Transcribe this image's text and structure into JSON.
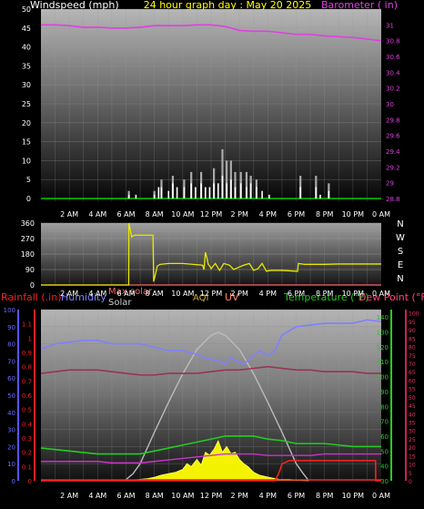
{
  "header": {
    "windspeed_label": "Windspeed (mph)",
    "title": "24 hour graph day : May 20 2025",
    "barometer_label": "Barometer ( in)"
  },
  "legend": {
    "rainfall": "Rainfall (.in)",
    "humidity": "Humidity",
    "max_solar": "Max solar",
    "solar": "Solar",
    "aqi": "AQI",
    "uv": "UV",
    "temperature": "Temperature (°F)",
    "dew_point": "Dew Point (°F)"
  },
  "colors": {
    "windspeed": "#ffffff",
    "wind_gust": "#aaaaaa",
    "barometer": "#e040e0",
    "wind_direction": "#e8e800",
    "humidity": "#8080ff",
    "max_solar": "#bbbbbb",
    "solar": "#ffff00",
    "temperature": "#22cc22",
    "dew_point": "#993355",
    "uv": "#ff2222",
    "rain": "#ee2222",
    "baseline_green": "#00cc00",
    "pink_line": "#ff6666",
    "gold_line": "#ccaa33"
  },
  "chart_data": [
    {
      "type": "line",
      "title": "24 hour graph day : May 20 2025",
      "x_ticks": [
        "2 AM",
        "4 AM",
        "6 AM",
        "8 AM",
        "10 AM",
        "12 PM",
        "2 PM",
        "4 PM",
        "6 PM",
        "8 PM",
        "10 PM",
        "0 AM"
      ],
      "y_left": {
        "label": "Windspeed (mph)",
        "ticks": [
          0,
          5,
          10,
          15,
          20,
          25,
          30,
          35,
          40,
          45,
          50
        ],
        "ylim": [
          0,
          50
        ]
      },
      "y_right": {
        "label": "Barometer ( in)",
        "ticks": [
          28.8,
          29,
          29.2,
          29.4,
          29.6,
          29.8,
          30,
          30.2,
          30.4,
          30.6,
          30.8,
          31
        ],
        "ylim": [
          28.8,
          31.2
        ]
      },
      "series": [
        {
          "key": "barometer",
          "axis": "right",
          "x": [
            0,
            1,
            2,
            3,
            4,
            5,
            6,
            7,
            8,
            9,
            10,
            11,
            12,
            13,
            14,
            15,
            16,
            17,
            18,
            19,
            20,
            21,
            22,
            23,
            24
          ],
          "values": [
            31.0,
            31.0,
            30.99,
            30.97,
            30.97,
            30.96,
            30.96,
            30.97,
            30.99,
            30.99,
            30.99,
            31.0,
            31.0,
            30.98,
            30.93,
            30.92,
            30.92,
            30.9,
            30.88,
            30.88,
            30.86,
            30.85,
            30.84,
            30.82,
            30.8
          ]
        },
        {
          "key": "windspeed",
          "axis": "left",
          "x": [
            6.2,
            6.7,
            8.0,
            8.3,
            8.5,
            9.0,
            9.3,
            9.6,
            10.1,
            10.6,
            10.9,
            11.3,
            11.6,
            11.9,
            12.2,
            12.5,
            12.8,
            13.1,
            13.4,
            13.7,
            14.1,
            14.5,
            14.8,
            15.2,
            15.6,
            16.1,
            18.3,
            19.4,
            19.7,
            20.3
          ],
          "values": [
            1,
            1,
            1,
            3,
            3,
            2,
            4,
            3,
            3,
            4,
            3,
            4,
            3,
            3,
            4,
            4,
            6,
            4,
            5,
            3,
            4,
            3,
            4,
            3,
            2,
            1,
            3,
            3,
            1,
            2
          ]
        },
        {
          "key": "wind_gust",
          "axis": "left",
          "x": [
            6.2,
            8.0,
            8.5,
            9.3,
            10.1,
            10.6,
            11.3,
            12.2,
            12.8,
            13.1,
            13.4,
            13.7,
            14.1,
            14.5,
            14.8,
            15.2,
            18.3,
            19.4,
            20.3
          ],
          "values": [
            2,
            2,
            5,
            6,
            5,
            7,
            7,
            8,
            13,
            10,
            10,
            7,
            7,
            7,
            6,
            5,
            6,
            6,
            4
          ]
        }
      ]
    },
    {
      "type": "line",
      "title": "",
      "x_ticks": [
        "2 AM",
        "4 AM",
        "6 AM",
        "8 AM",
        "10 AM",
        "12 PM",
        "2 PM",
        "4 PM",
        "6 PM",
        "8 PM",
        "10 PM",
        "0 AM"
      ],
      "y_left": {
        "ticks": [
          0,
          90,
          180,
          270,
          360
        ],
        "ylim": [
          0,
          360
        ]
      },
      "compass_labels": [
        "N",
        "W",
        "S",
        "E",
        "N"
      ],
      "series": [
        {
          "key": "wind_direction",
          "x": [
            0,
            6.19,
            6.2,
            6.4,
            6.6,
            7.9,
            7.95,
            8.1,
            8.2,
            8.4,
            9.0,
            10.0,
            11.4,
            11.5,
            11.6,
            11.7,
            11.8,
            11.9,
            12.0,
            12.3,
            12.6,
            12.9,
            13.3,
            13.6,
            14.0,
            14.3,
            14.7,
            15.0,
            15.3,
            15.6,
            15.9,
            16.2,
            17.0,
            18.1,
            18.15,
            18.6,
            19.0,
            20.0,
            21.0,
            22.0,
            24.0
          ],
          "values": [
            0,
            0,
            360,
            280,
            290,
            290,
            20,
            70,
            110,
            120,
            125,
            125,
            115,
            90,
            190,
            160,
            120,
            110,
            95,
            125,
            85,
            125,
            115,
            90,
            105,
            115,
            125,
            85,
            95,
            125,
            80,
            85,
            85,
            80,
            125,
            120,
            120,
            120,
            122,
            122,
            122
          ]
        }
      ]
    },
    {
      "type": "line",
      "title": "",
      "x_ticks": [
        "2 AM",
        "4 AM",
        "6 AM",
        "8 AM",
        "10 AM",
        "12 PM",
        "2 PM",
        "4 PM",
        "6 PM",
        "8 PM",
        "10 PM",
        "0 AM"
      ],
      "axes": {
        "rainfall": {
          "label": "Rainfall (.in)",
          "ticks": [
            0,
            0.1,
            0.2,
            0.3,
            0.4,
            0.5,
            0.6,
            0.7,
            0.8,
            0.9,
            1,
            1.1
          ],
          "ylim": [
            0,
            1.2
          ]
        },
        "humidity": {
          "label": "Humidity",
          "ticks": [
            0,
            10,
            20,
            30,
            40,
            50,
            60,
            70,
            80,
            90,
            100
          ],
          "ylim": [
            0,
            100
          ]
        },
        "temperature": {
          "label": "Temperature (°F)",
          "ticks": [
            30,
            40,
            50,
            60,
            70,
            80,
            90,
            100,
            110,
            120,
            130,
            140
          ],
          "ylim": [
            30,
            145
          ]
        },
        "dew_point": {
          "label": "Dew Point (°F)",
          "ticks": [
            0,
            5,
            10,
            15,
            20,
            25,
            30,
            35,
            40,
            45,
            50,
            55,
            60,
            65,
            70,
            75,
            80,
            85,
            90,
            95,
            100
          ],
          "ylim": [
            0,
            102
          ]
        }
      },
      "series": [
        {
          "key": "humidity",
          "axis": "humidity",
          "x": [
            0,
            1,
            2,
            3,
            4,
            5,
            6,
            7,
            8,
            9,
            10,
            10.5,
            11,
            11.5,
            12,
            12.5,
            13,
            13.4,
            13.8,
            14.3,
            14.8,
            15.5,
            16,
            16.5,
            17,
            18,
            19,
            20,
            21,
            22,
            23,
            24
          ],
          "values": [
            77,
            80,
            81,
            82,
            82,
            80,
            80,
            80,
            78,
            76,
            76,
            75,
            74,
            72,
            71,
            70,
            68,
            72,
            70,
            68,
            72,
            76,
            73,
            76,
            85,
            90,
            91,
            92,
            92,
            92,
            94,
            93
          ]
        },
        {
          "key": "dew_point",
          "axis": "dew_point",
          "x": [
            0,
            1,
            2,
            3,
            4,
            5,
            6,
            7,
            8,
            9,
            10,
            11,
            12,
            13,
            14,
            15,
            16,
            17,
            18,
            19,
            20,
            21,
            22,
            23,
            24
          ],
          "values": [
            64,
            65,
            66,
            66,
            66,
            65,
            64,
            63,
            63,
            64,
            64,
            64,
            65,
            66,
            66,
            67,
            68,
            67,
            66,
            66,
            65,
            65,
            65,
            64,
            64
          ]
        },
        {
          "key": "max_solar",
          "axis": "rainfall",
          "x": [
            5.9,
            6.5,
            7,
            8,
            9,
            10,
            11,
            12,
            12.5,
            13,
            14,
            15,
            16,
            17,
            18,
            18.5,
            18.9
          ],
          "values": [
            0,
            0.05,
            0.12,
            0.34,
            0.55,
            0.75,
            0.92,
            1.02,
            1.04,
            1.02,
            0.92,
            0.75,
            0.55,
            0.34,
            0.12,
            0.05,
            0
          ]
        },
        {
          "key": "solar",
          "axis": "rainfall",
          "x": [
            5.9,
            6.5,
            7,
            7.5,
            8,
            8.5,
            9,
            9.5,
            10,
            10.3,
            10.6,
            11,
            11.3,
            11.6,
            11.9,
            12.2,
            12.5,
            12.8,
            13.1,
            13.4,
            13.7,
            14.0,
            14.3,
            14.6,
            15,
            15.4,
            15.8,
            16.3,
            16.8,
            17.5,
            18.0,
            18.5,
            18.9
          ],
          "values": [
            0,
            0.005,
            0.01,
            0.015,
            0.025,
            0.04,
            0.05,
            0.06,
            0.08,
            0.12,
            0.1,
            0.15,
            0.11,
            0.2,
            0.18,
            0.22,
            0.28,
            0.2,
            0.24,
            0.19,
            0.2,
            0.15,
            0.12,
            0.1,
            0.06,
            0.04,
            0.03,
            0.02,
            0.01,
            0.01,
            0.005,
            0.002,
            0
          ]
        },
        {
          "key": "temperature",
          "axis": "temperature",
          "x": [
            0,
            1,
            2,
            3,
            4,
            5,
            6,
            7,
            8,
            9,
            10,
            11,
            12,
            13,
            14,
            15,
            16,
            17,
            18,
            19,
            20,
            21,
            22,
            23,
            24
          ],
          "values": [
            52,
            51,
            50,
            49,
            48,
            48,
            48,
            48,
            50,
            52,
            54,
            56,
            58,
            60,
            60,
            60,
            58,
            57,
            55,
            55,
            55,
            54,
            53,
            53,
            53
          ]
        },
        {
          "key": "temperature_secondary",
          "axis": "temperature",
          "x": [
            0,
            1,
            2,
            3,
            4,
            5,
            6,
            7,
            8,
            9,
            10,
            11,
            12,
            13,
            14,
            15,
            16,
            17,
            18,
            19,
            20,
            21,
            22,
            23,
            24
          ],
          "values": [
            43,
            43,
            43,
            43,
            43,
            42,
            42,
            42,
            43,
            44,
            45,
            46,
            47,
            48,
            48,
            48,
            47,
            47,
            47,
            47,
            48,
            48,
            48,
            48,
            48
          ]
        },
        {
          "key": "uv",
          "axis": "dew_point",
          "x": [
            0,
            16.5,
            16.8,
            17.0,
            17.5,
            18,
            19,
            20,
            21,
            22,
            23,
            23.6,
            23.61,
            24
          ],
          "values": [
            0,
            0,
            5,
            10,
            12,
            12,
            12,
            12,
            12,
            12,
            12,
            12,
            0,
            0
          ]
        }
      ]
    }
  ]
}
